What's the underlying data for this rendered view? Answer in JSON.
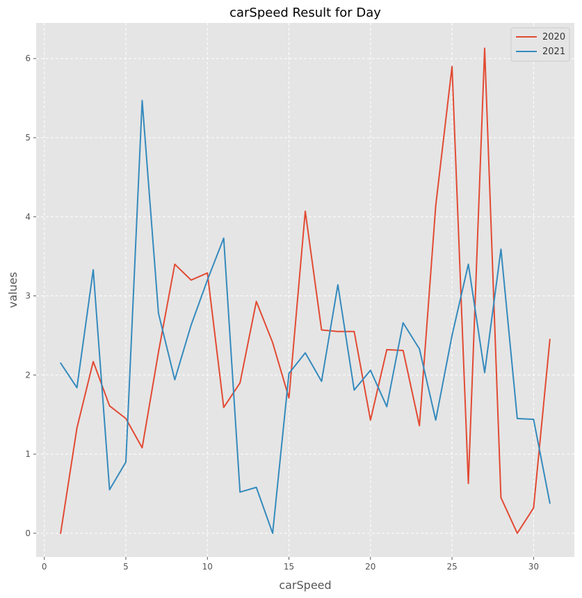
{
  "chart_data": {
    "type": "line",
    "title": "carSpeed Result for Day",
    "xlabel": "carSpeed",
    "ylabel": "values",
    "xlim": [
      -0.5,
      32.5
    ],
    "ylim": [
      -0.3,
      6.45
    ],
    "xticks": [
      0,
      5,
      10,
      15,
      20,
      25,
      30
    ],
    "yticks": [
      0,
      1,
      2,
      3,
      4,
      5,
      6
    ],
    "grid": true,
    "legend_position": "top-right",
    "x": [
      1,
      2,
      3,
      4,
      5,
      6,
      7,
      8,
      9,
      10,
      11,
      12,
      13,
      14,
      15,
      16,
      17,
      18,
      19,
      20,
      21,
      22,
      23,
      24,
      25,
      26,
      27,
      28,
      29,
      30,
      31
    ],
    "series": [
      {
        "name": "2020",
        "color": "#E24A33",
        "values": [
          0.0,
          1.33,
          2.17,
          1.61,
          1.45,
          1.08,
          2.29,
          3.4,
          3.2,
          3.29,
          1.59,
          1.9,
          2.93,
          2.41,
          1.71,
          4.07,
          2.57,
          2.55,
          2.55,
          1.43,
          2.32,
          2.31,
          1.36,
          4.14,
          5.9,
          0.63,
          6.13,
          0.45,
          0.0,
          0.32,
          2.45
        ]
      },
      {
        "name": "2021",
        "color": "#348ABD",
        "values": [
          2.15,
          1.84,
          3.33,
          0.55,
          0.9,
          5.47,
          2.78,
          1.94,
          2.63,
          3.2,
          3.73,
          0.52,
          0.58,
          0.0,
          2.02,
          2.28,
          1.92,
          3.14,
          1.81,
          2.06,
          1.6,
          2.66,
          2.33,
          1.43,
          2.5,
          3.4,
          2.03,
          3.59,
          1.45,
          1.44,
          0.38
        ]
      }
    ]
  }
}
